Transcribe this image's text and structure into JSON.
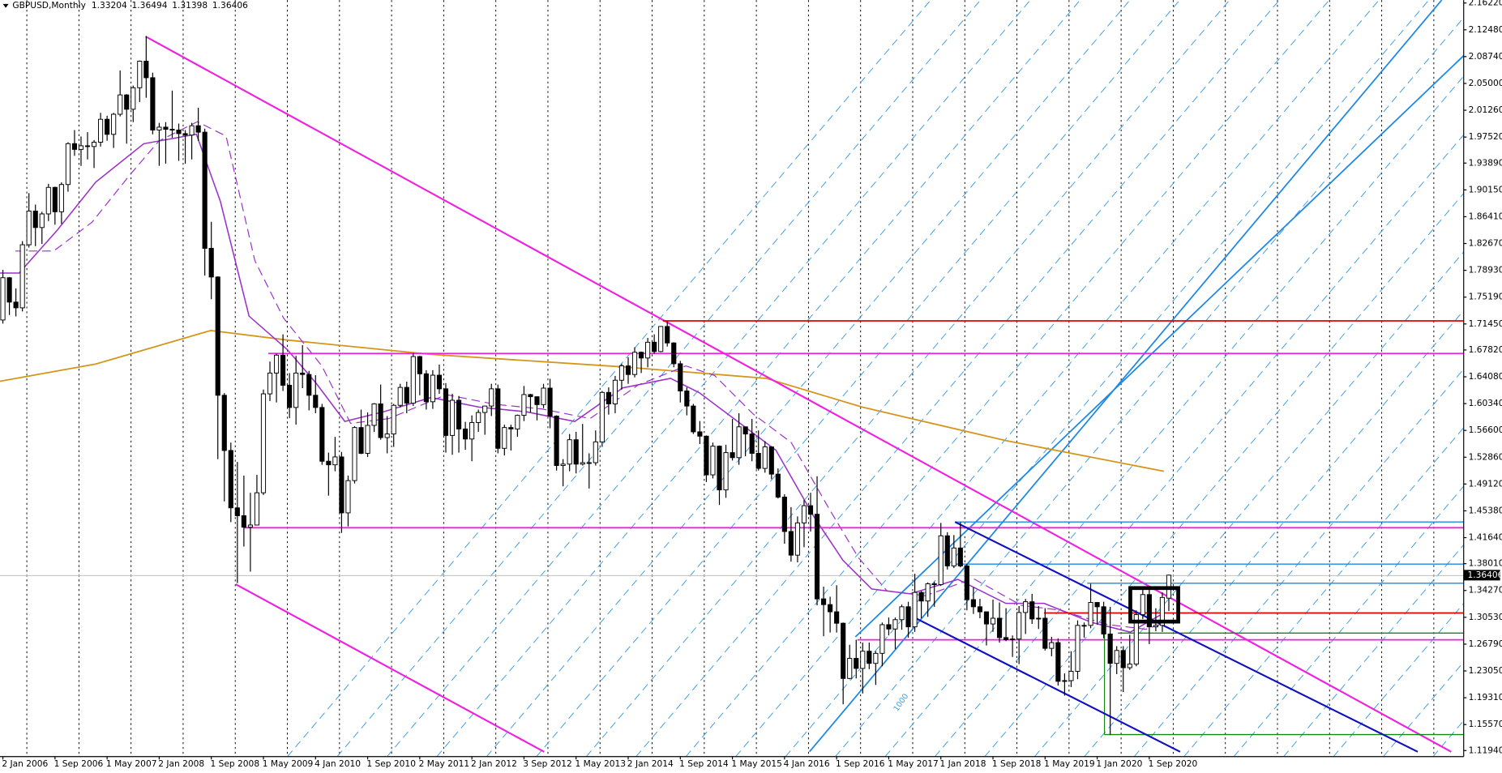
{
  "chart_data": {
    "type": "candlestick",
    "title": "GBPUSD,Monthly",
    "annotation": "1000",
    "ylim": [
      1.111,
      2.1662
    ],
    "yticks": [
      {
        "value": 2.1622,
        "label": "2.16220"
      },
      {
        "value": 2.1248,
        "label": "2.12480"
      },
      {
        "value": 2.0874,
        "label": "2.08740"
      },
      {
        "value": 2.05,
        "label": "2.05000"
      },
      {
        "value": 2.0126,
        "label": "2.01260"
      },
      {
        "value": 1.9752,
        "label": "1.97520"
      },
      {
        "value": 1.9389,
        "label": "1.93890"
      },
      {
        "value": 1.9015,
        "label": "1.90150"
      },
      {
        "value": 1.8641,
        "label": "1.86410"
      },
      {
        "value": 1.8267,
        "label": "1.82670"
      },
      {
        "value": 1.7893,
        "label": "1.78930"
      },
      {
        "value": 1.7519,
        "label": "1.75190"
      },
      {
        "value": 1.7145,
        "label": "1.71450"
      },
      {
        "value": 1.6782,
        "label": "1.67820"
      },
      {
        "value": 1.6408,
        "label": "1.64080"
      },
      {
        "value": 1.6034,
        "label": "1.60340"
      },
      {
        "value": 1.566,
        "label": "1.56600"
      },
      {
        "value": 1.5286,
        "label": "1.52860"
      },
      {
        "value": 1.4912,
        "label": "1.49120"
      },
      {
        "value": 1.4538,
        "label": "1.45380"
      },
      {
        "value": 1.4164,
        "label": "1.41640"
      },
      {
        "value": 1.3801,
        "label": "1.38010"
      },
      {
        "value": 1.3427,
        "label": "1.34270"
      },
      {
        "value": 1.3053,
        "label": "1.30530"
      },
      {
        "value": 1.2679,
        "label": "1.26790"
      },
      {
        "value": 1.2305,
        "label": "1.23050"
      },
      {
        "value": 1.1931,
        "label": "1.19310"
      },
      {
        "value": 1.1557,
        "label": "1.15570"
      },
      {
        "value": 1.1194,
        "label": "1.11940"
      }
    ],
    "x_labels": [
      "2 Jan 2006",
      "1 Sep 2006",
      "1 May 2007",
      "2 Jan 2008",
      "1 Sep 2008",
      "1 May 2009",
      "4 Jan 2010",
      "1 Sep 2010",
      "2 May 2011",
      "2 Jan 2012",
      "3 Sep 2012",
      "1 May 2013",
      "2 Jan 2014",
      "1 Sep 2014",
      "1 May 2015",
      "4 Jan 2016",
      "1 Sep 2016",
      "1 May 2017",
      "1 Jan 2018",
      "1 Sep 2018",
      "1 May 2019",
      "1 Jan 2020",
      "1 Sep 2020"
    ],
    "up_color": "#ffffff",
    "down_color": "#000000",
    "candles": [
      [
        1.72,
        1.79,
        1.715,
        1.779
      ],
      [
        1.779,
        1.78,
        1.727,
        1.745
      ],
      [
        1.745,
        1.764,
        1.725,
        1.737
      ],
      [
        1.737,
        1.83,
        1.732,
        1.825
      ],
      [
        1.825,
        1.897,
        1.821,
        1.872
      ],
      [
        1.872,
        1.881,
        1.823,
        1.849
      ],
      [
        1.849,
        1.871,
        1.826,
        1.868
      ],
      [
        1.868,
        1.91,
        1.858,
        1.905
      ],
      [
        1.905,
        1.906,
        1.853,
        1.871
      ],
      [
        1.871,
        1.912,
        1.854,
        1.909
      ],
      [
        1.909,
        1.968,
        1.899,
        1.966
      ],
      [
        1.966,
        1.985,
        1.949,
        1.958
      ],
      [
        1.958,
        1.976,
        1.935,
        1.963
      ],
      [
        1.963,
        1.982,
        1.944,
        1.962
      ],
      [
        1.962,
        1.971,
        1.932,
        1.968
      ],
      [
        1.968,
        2.009,
        1.962,
        2.0
      ],
      [
        2.0,
        2.005,
        1.97,
        1.979
      ],
      [
        1.979,
        2.009,
        1.96,
        2.007
      ],
      [
        2.007,
        2.068,
        2.004,
        2.034
      ],
      [
        2.034,
        2.035,
        1.966,
        2.014
      ],
      [
        2.014,
        2.047,
        1.996,
        2.044
      ],
      [
        2.044,
        2.082,
        2.024,
        2.081
      ],
      [
        2.081,
        2.116,
        2.03,
        2.058
      ],
      [
        2.058,
        2.065,
        1.979,
        1.985
      ],
      [
        1.985,
        1.995,
        1.935,
        1.989
      ],
      [
        1.989,
        1.996,
        1.938,
        1.986
      ],
      [
        1.986,
        2.04,
        1.974,
        1.985
      ],
      [
        1.985,
        1.994,
        1.942,
        1.98
      ],
      [
        1.98,
        1.985,
        1.938,
        1.978
      ],
      [
        1.978,
        1.995,
        1.944,
        1.991
      ],
      [
        1.991,
        2.016,
        1.97,
        1.982
      ],
      [
        1.982,
        1.987,
        1.782,
        1.82
      ],
      [
        1.82,
        1.857,
        1.749,
        1.78
      ],
      [
        1.78,
        1.781,
        1.526,
        1.615
      ],
      [
        1.615,
        1.618,
        1.467,
        1.538
      ],
      [
        1.538,
        1.549,
        1.438,
        1.458
      ],
      [
        1.458,
        1.522,
        1.353,
        1.447
      ],
      [
        1.447,
        1.503,
        1.404,
        1.431
      ],
      [
        1.431,
        1.479,
        1.369,
        1.434
      ],
      [
        1.434,
        1.504,
        1.434,
        1.479
      ],
      [
        1.479,
        1.623,
        1.476,
        1.617
      ],
      [
        1.617,
        1.662,
        1.607,
        1.646
      ],
      [
        1.646,
        1.673,
        1.605,
        1.671
      ],
      [
        1.671,
        1.7,
        1.621,
        1.629
      ],
      [
        1.629,
        1.646,
        1.583,
        1.598
      ],
      [
        1.598,
        1.67,
        1.574,
        1.646
      ],
      [
        1.646,
        1.685,
        1.625,
        1.644
      ],
      [
        1.644,
        1.649,
        1.594,
        1.615
      ],
      [
        1.615,
        1.643,
        1.59,
        1.598
      ],
      [
        1.598,
        1.603,
        1.518,
        1.523
      ],
      [
        1.523,
        1.535,
        1.475,
        1.518
      ],
      [
        1.518,
        1.557,
        1.509,
        1.529
      ],
      [
        1.529,
        1.536,
        1.423,
        1.451
      ],
      [
        1.451,
        1.503,
        1.432,
        1.496
      ],
      [
        1.496,
        1.572,
        1.492,
        1.57
      ],
      [
        1.57,
        1.595,
        1.533,
        1.534
      ],
      [
        1.534,
        1.591,
        1.529,
        1.573
      ],
      [
        1.573,
        1.604,
        1.564,
        1.603
      ],
      [
        1.603,
        1.63,
        1.553,
        1.556
      ],
      [
        1.556,
        1.586,
        1.534,
        1.561
      ],
      [
        1.561,
        1.603,
        1.543,
        1.601
      ],
      [
        1.601,
        1.631,
        1.598,
        1.626
      ],
      [
        1.626,
        1.634,
        1.59,
        1.604
      ],
      [
        1.604,
        1.674,
        1.6,
        1.669
      ],
      [
        1.669,
        1.67,
        1.615,
        1.645
      ],
      [
        1.645,
        1.65,
        1.595,
        1.606
      ],
      [
        1.606,
        1.65,
        1.596,
        1.643
      ],
      [
        1.643,
        1.658,
        1.617,
        1.624
      ],
      [
        1.624,
        1.632,
        1.535,
        1.559
      ],
      [
        1.559,
        1.617,
        1.532,
        1.608
      ],
      [
        1.608,
        1.614,
        1.535,
        1.568
      ],
      [
        1.568,
        1.578,
        1.539,
        1.554
      ],
      [
        1.554,
        1.587,
        1.523,
        1.577
      ],
      [
        1.577,
        1.595,
        1.564,
        1.591
      ],
      [
        1.591,
        1.6,
        1.56,
        1.6
      ],
      [
        1.6,
        1.631,
        1.586,
        1.624
      ],
      [
        1.624,
        1.63,
        1.534,
        1.541
      ],
      [
        1.541,
        1.574,
        1.531,
        1.57
      ],
      [
        1.57,
        1.574,
        1.538,
        1.568
      ],
      [
        1.568,
        1.588,
        1.557,
        1.587
      ],
      [
        1.587,
        1.628,
        1.579,
        1.616
      ],
      [
        1.616,
        1.617,
        1.591,
        1.613
      ],
      [
        1.613,
        1.613,
        1.58,
        1.602
      ],
      [
        1.602,
        1.631,
        1.597,
        1.625
      ],
      [
        1.625,
        1.638,
        1.569,
        1.586
      ],
      [
        1.586,
        1.587,
        1.51,
        1.517
      ],
      [
        1.517,
        1.526,
        1.488,
        1.519
      ],
      [
        1.519,
        1.561,
        1.509,
        1.553
      ],
      [
        1.553,
        1.564,
        1.506,
        1.519
      ],
      [
        1.519,
        1.575,
        1.517,
        1.521
      ],
      [
        1.521,
        1.534,
        1.485,
        1.521
      ],
      [
        1.521,
        1.566,
        1.517,
        1.55
      ],
      [
        1.55,
        1.621,
        1.543,
        1.619
      ],
      [
        1.619,
        1.626,
        1.588,
        1.603
      ],
      [
        1.603,
        1.642,
        1.59,
        1.636
      ],
      [
        1.636,
        1.659,
        1.623,
        1.656
      ],
      [
        1.656,
        1.668,
        1.631,
        1.644
      ],
      [
        1.644,
        1.682,
        1.64,
        1.675
      ],
      [
        1.675,
        1.676,
        1.646,
        1.667
      ],
      [
        1.667,
        1.695,
        1.654,
        1.689
      ],
      [
        1.689,
        1.7,
        1.673,
        1.676
      ],
      [
        1.676,
        1.711,
        1.675,
        1.711
      ],
      [
        1.711,
        1.718,
        1.683,
        1.688
      ],
      [
        1.688,
        1.689,
        1.654,
        1.659
      ],
      [
        1.659,
        1.663,
        1.605,
        1.621
      ],
      [
        1.621,
        1.626,
        1.587,
        1.6
      ],
      [
        1.6,
        1.603,
        1.561,
        1.564
      ],
      [
        1.564,
        1.579,
        1.547,
        1.558
      ],
      [
        1.558,
        1.559,
        1.494,
        1.504
      ],
      [
        1.504,
        1.549,
        1.499,
        1.544
      ],
      [
        1.544,
        1.545,
        1.462,
        1.483
      ],
      [
        1.483,
        1.546,
        1.472,
        1.535
      ],
      [
        1.535,
        1.582,
        1.524,
        1.528
      ],
      [
        1.528,
        1.59,
        1.518,
        1.571
      ],
      [
        1.571,
        1.571,
        1.53,
        1.561
      ],
      [
        1.561,
        1.582,
        1.523,
        1.534
      ],
      [
        1.534,
        1.566,
        1.51,
        1.513
      ],
      [
        1.513,
        1.551,
        1.507,
        1.543
      ],
      [
        1.543,
        1.544,
        1.498,
        1.505
      ],
      [
        1.505,
        1.513,
        1.471,
        1.473
      ],
      [
        1.473,
        1.477,
        1.408,
        1.425
      ],
      [
        1.425,
        1.459,
        1.383,
        1.392
      ],
      [
        1.392,
        1.446,
        1.382,
        1.437
      ],
      [
        1.437,
        1.469,
        1.403,
        1.461
      ],
      [
        1.461,
        1.479,
        1.425,
        1.449
      ],
      [
        1.449,
        1.502,
        1.322,
        1.331
      ],
      [
        1.331,
        1.348,
        1.279,
        1.323
      ],
      [
        1.323,
        1.334,
        1.284,
        1.313
      ],
      [
        1.313,
        1.35,
        1.284,
        1.297
      ],
      [
        1.297,
        1.298,
        1.184,
        1.22
      ],
      [
        1.22,
        1.267,
        1.219,
        1.248
      ],
      [
        1.248,
        1.274,
        1.22,
        1.234
      ],
      [
        1.234,
        1.27,
        1.199,
        1.258
      ],
      [
        1.258,
        1.27,
        1.233,
        1.241
      ],
      [
        1.241,
        1.258,
        1.211,
        1.255
      ],
      [
        1.255,
        1.298,
        1.237,
        1.295
      ],
      [
        1.295,
        1.305,
        1.28,
        1.289
      ],
      [
        1.289,
        1.305,
        1.261,
        1.302
      ],
      [
        1.302,
        1.323,
        1.288,
        1.32
      ],
      [
        1.32,
        1.327,
        1.277,
        1.292
      ],
      [
        1.292,
        1.366,
        1.285,
        1.34
      ],
      [
        1.34,
        1.342,
        1.304,
        1.328
      ],
      [
        1.328,
        1.354,
        1.306,
        1.352
      ],
      [
        1.352,
        1.355,
        1.32,
        1.351
      ],
      [
        1.351,
        1.437,
        1.349,
        1.419
      ],
      [
        1.419,
        1.424,
        1.372,
        1.377
      ],
      [
        1.377,
        1.42,
        1.374,
        1.402
      ],
      [
        1.402,
        1.438,
        1.375,
        1.377
      ],
      [
        1.377,
        1.38,
        1.315,
        1.33
      ],
      [
        1.33,
        1.347,
        1.31,
        1.32
      ],
      [
        1.32,
        1.331,
        1.304,
        1.313
      ],
      [
        1.313,
        1.313,
        1.266,
        1.296
      ],
      [
        1.296,
        1.33,
        1.285,
        1.304
      ],
      [
        1.304,
        1.326,
        1.27,
        1.277
      ],
      [
        1.277,
        1.318,
        1.272,
        1.274
      ],
      [
        1.274,
        1.28,
        1.25,
        1.275
      ],
      [
        1.275,
        1.321,
        1.24,
        1.312
      ],
      [
        1.312,
        1.331,
        1.282,
        1.327
      ],
      [
        1.327,
        1.338,
        1.296,
        1.303
      ],
      [
        1.303,
        1.321,
        1.289,
        1.304
      ],
      [
        1.304,
        1.318,
        1.259,
        1.262
      ],
      [
        1.262,
        1.278,
        1.251,
        1.27
      ],
      [
        1.27,
        1.276,
        1.21,
        1.216
      ],
      [
        1.216,
        1.227,
        1.196,
        1.217
      ],
      [
        1.217,
        1.258,
        1.208,
        1.23
      ],
      [
        1.23,
        1.301,
        1.219,
        1.294
      ],
      [
        1.294,
        1.298,
        1.277,
        1.294
      ],
      [
        1.294,
        1.352,
        1.29,
        1.326
      ],
      [
        1.326,
        1.326,
        1.295,
        1.32
      ],
      [
        1.32,
        1.327,
        1.276,
        1.282
      ],
      [
        1.282,
        1.32,
        1.141,
        1.241
      ],
      [
        1.241,
        1.265,
        1.226,
        1.259
      ],
      [
        1.259,
        1.265,
        1.201,
        1.235
      ],
      [
        1.235,
        1.281,
        1.232,
        1.24
      ],
      [
        1.24,
        1.315,
        1.237,
        1.309
      ],
      [
        1.309,
        1.348,
        1.303,
        1.337
      ],
      [
        1.337,
        1.348,
        1.268,
        1.292
      ],
      [
        1.292,
        1.318,
        1.286,
        1.294
      ],
      [
        1.294,
        1.34,
        1.285,
        1.333
      ],
      [
        1.33204,
        1.36494,
        1.31398,
        1.36406
      ]
    ]
  }
}
